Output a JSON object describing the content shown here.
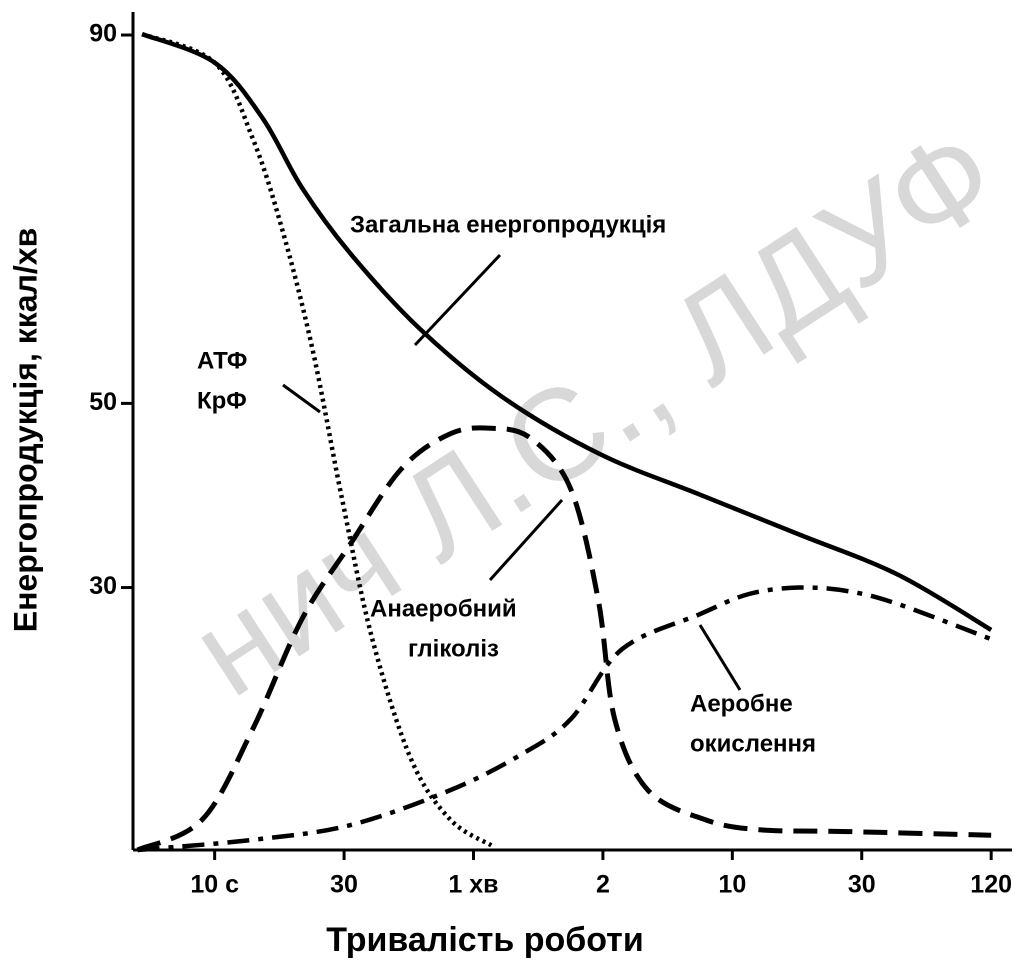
{
  "chart_data": {
    "type": "line",
    "xlabel": "Тривалість роботи",
    "ylabel": "Енергопродукція, ккал/хв",
    "watermark": "нич Л.С., ЛДУФ",
    "xscale": "log",
    "xlim": [
      5,
      9000
    ],
    "xticks": [
      {
        "value": 10,
        "label": "10 с"
      },
      {
        "value": 30,
        "label": "30"
      },
      {
        "value": 60,
        "label": "1 хв"
      },
      {
        "value": 120,
        "label": "2"
      },
      {
        "value": 600,
        "label": "10"
      },
      {
        "value": 1800,
        "label": "30"
      },
      {
        "value": 7200,
        "label": "120"
      }
    ],
    "ylim": [
      1.5,
      92.5
    ],
    "yticks": [
      30,
      50,
      90
    ],
    "series": [
      {
        "name": "Загальна енергопродукція",
        "color": "#000000",
        "style": "solid",
        "x": [
          5.4,
          10,
          15,
          21,
          31,
          45,
          70,
          118,
          400,
          1050,
          2650,
          7200
        ],
        "values": [
          90.1,
          87,
          81,
          73.4,
          66.3,
          58.1,
          50.7,
          44.5,
          40.1,
          35.8,
          31.4,
          25.4
        ]
      },
      {
        "name": "АТФ КрФ",
        "color": "#000000",
        "style": "dotted",
        "x": [
          5.4,
          10,
          13.8,
          17.7,
          22.9,
          29.5,
          34.9,
          43,
          53,
          66
        ],
        "values": [
          90.1,
          87,
          78.8,
          69,
          56,
          39.6,
          24.4,
          11.3,
          4.8,
          2.0
        ]
      },
      {
        "name": "Анаеробний гліколіз",
        "color": "#000000",
        "style": "dashed",
        "x": [
          5.2,
          9,
          13.8,
          21,
          31,
          40.8,
          53,
          66,
          81.6,
          101,
          117,
          139,
          210,
          427,
          755,
          1606,
          7200
        ],
        "values": [
          1.5,
          4.8,
          14.6,
          26.6,
          34.7,
          42.9,
          46.7,
          47.3,
          46.2,
          40.7,
          28.7,
          15.7,
          8.0,
          4.8,
          3.7,
          3.5,
          3.1
        ]
      },
      {
        "name": "Аеробне окислення",
        "color": "#000000",
        "style": "dashdot",
        "x": [
          5.2,
          13.8,
          31,
          53,
          77,
          101,
          152,
          399,
          691,
          1057,
          1606,
          2659,
          7200
        ],
        "values": [
          1.5,
          2.6,
          4.2,
          8.0,
          11.8,
          15.7,
          23.3,
          27.1,
          29.3,
          30.0,
          29.6,
          28.2,
          24.4
        ]
      }
    ],
    "annotations": [
      {
        "lines": [
          "Загальна енергопродукція"
        ]
      },
      {
        "lines": [
          "АТФ",
          "КрФ"
        ]
      },
      {
        "lines": [
          "Анаеробний",
          "гліколіз"
        ]
      },
      {
        "lines": [
          "Аеробне",
          "окислення"
        ]
      }
    ]
  }
}
